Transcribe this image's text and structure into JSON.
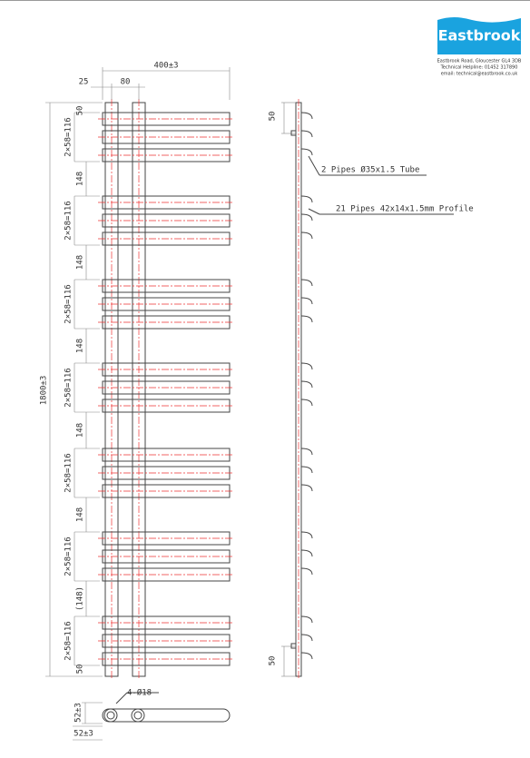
{
  "header": {
    "logo": "Eastbrook",
    "address": "Eastbrook Road, Gloucester GL4 3DB",
    "helpline": "Technical Helpline: 01452 317890",
    "email": "email: technical@eastbrook.co.uk"
  },
  "front_view": {
    "overall_width": "400±3",
    "pipe_offset": "25",
    "pipe_spacing": "80",
    "top_margin": "50",
    "group_heights": [
      "2×58=116",
      "2×58=116",
      "2×58=116",
      "2×58=116",
      "2×58=116",
      "2×58=116",
      "2×58=116"
    ],
    "group_gaps": [
      "148",
      "148",
      "148",
      "148",
      "148",
      "(148)"
    ],
    "overall_height": "1800±3",
    "bottom_margin": "50"
  },
  "side_view": {
    "top_margin": "50",
    "bottom_margin": "50",
    "tube_label": "2 Pipes Ø35x1.5 Tube",
    "profile_label": "21 Pipes 42x14x1.5mm Profile"
  },
  "bottom_view": {
    "holes": "4-Ø18",
    "depth": "52±3",
    "depth_total": "52±3"
  }
}
